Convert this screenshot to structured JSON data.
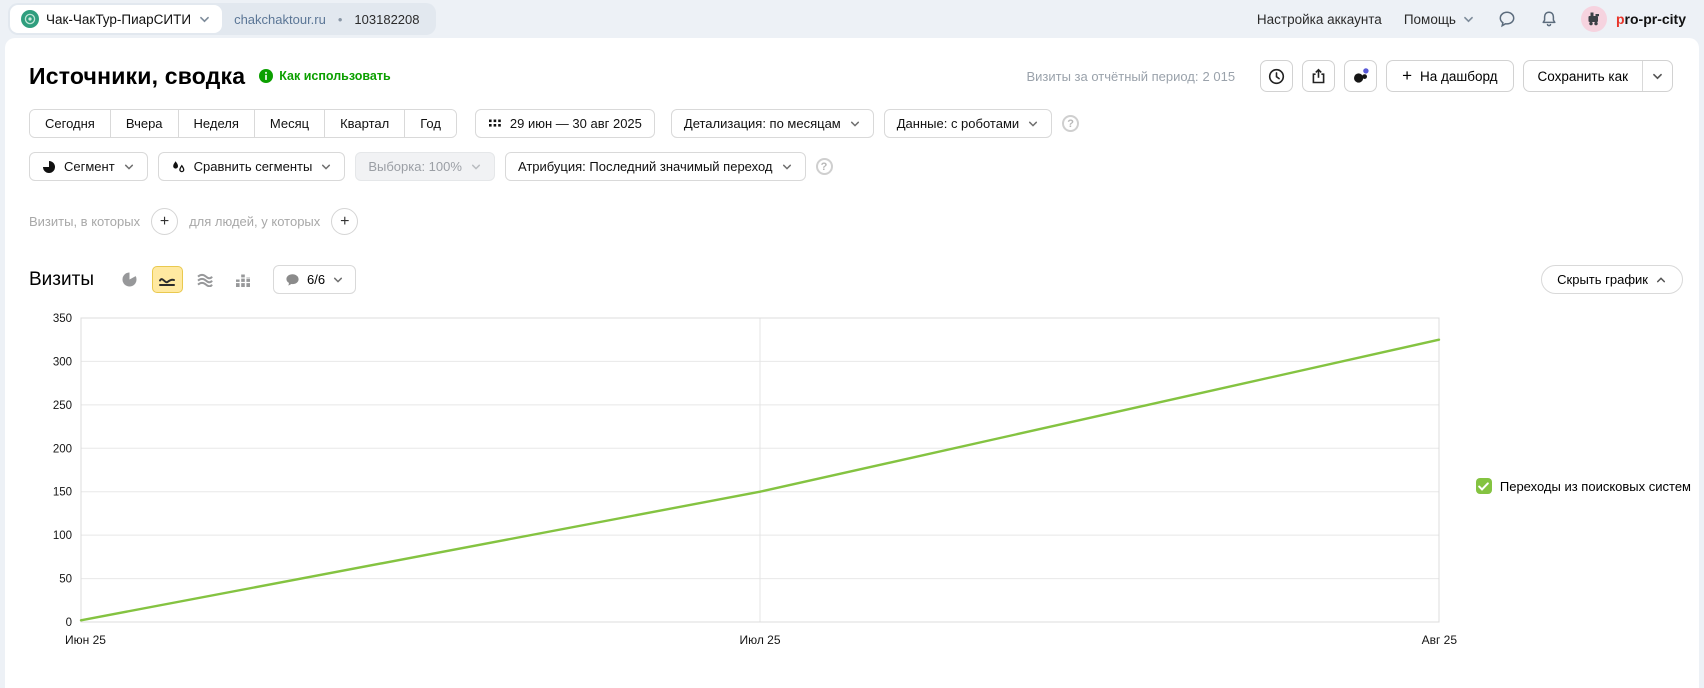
{
  "topbar": {
    "counter": {
      "name": "Чак-ЧакТур-ПиарСИТИ",
      "domain": "chakchaktour.ru",
      "separator": "•",
      "id": "103182208"
    },
    "account_settings": "Настройка аккаунта",
    "help": "Помощь",
    "user_first": "p",
    "user_rest": "ro-pr-city"
  },
  "header": {
    "title": "Источники, сводка",
    "how_to_use": "Как использовать",
    "visits_label": "Визиты за отчётный период:",
    "visits_value": "2 015",
    "dashboard_button": "На дашборд",
    "save_as_button": "Сохранить как"
  },
  "filters": {
    "periods": [
      "Сегодня",
      "Вчера",
      "Неделя",
      "Месяц",
      "Квартал",
      "Год"
    ],
    "date_range": "29 июн — 30 авг 2025",
    "detail": "Детализация: по месяцам",
    "data_mode": "Данные: с роботами",
    "segment": "Сегмент",
    "compare": "Сравнить сегменты",
    "sampling": "Выборка: 100%",
    "attribution": "Атрибуция: Последний значимый переход"
  },
  "query": {
    "visits_in_which": "Визиты, в которых",
    "for_people": "для людей, у которых"
  },
  "chart_section": {
    "title": "Визиты",
    "annotations_count": "6/6",
    "hide_chart": "Скрыть график"
  },
  "chart_data": {
    "type": "line",
    "title": "Визиты",
    "x": [
      "Июн 25",
      "Июл 25",
      "Авг 25"
    ],
    "series": [
      {
        "name": "Переходы из поисковых систем",
        "values": [
          2,
          150,
          325
        ],
        "color": "#84c341"
      }
    ],
    "ylim": [
      0,
      350
    ],
    "yticks": [
      0,
      50,
      100,
      150,
      200,
      250,
      300,
      350
    ],
    "grid": true,
    "legend_position": "right"
  },
  "colors": {
    "accent_green": "#0ca000",
    "line_green": "#84c341",
    "selected_tool_bg": "#ffe9a1"
  }
}
